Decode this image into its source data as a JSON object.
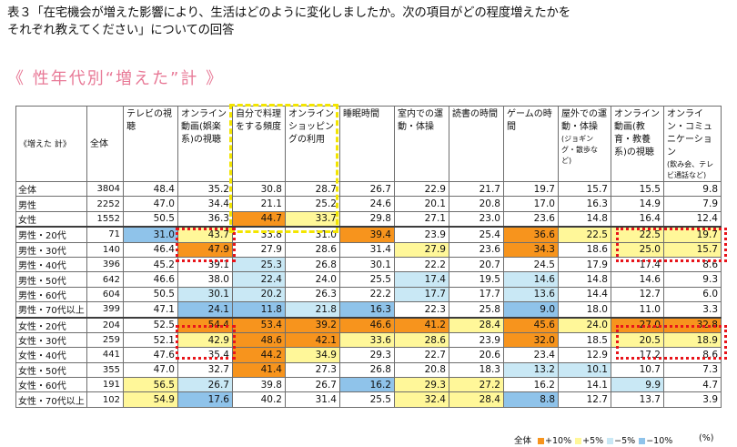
{
  "caption": "表３「在宅機会が増えた影響により、生活はどのように変化しましたか。次の項目がどの程度増えたかを\nそれぞれ教えてください」についての回答",
  "subtitle": "《 性年代別“増えた”計 》",
  "table": {
    "corner": "《増えた 計》",
    "total_header": "全体",
    "columns": [
      {
        "main": "テレビの視聴",
        "sub": ""
      },
      {
        "main": "オンライン動画(娯楽系)の視聴",
        "sub": ""
      },
      {
        "main": "自分で料理をする頻度",
        "sub": ""
      },
      {
        "main": "オンラインショッピングの利用",
        "sub": ""
      },
      {
        "main": "睡眠時間",
        "sub": ""
      },
      {
        "main": "室内での運動・体操",
        "sub": ""
      },
      {
        "main": "読書の時間",
        "sub": ""
      },
      {
        "main": "ゲームの時間",
        "sub": ""
      },
      {
        "main": "屋外での運動・体操",
        "sub": "(ジョギング・散歩など)"
      },
      {
        "main": "オンライン動画(教育・教養系)の視聴",
        "sub": ""
      },
      {
        "main": "オンライン・コミュニケーション",
        "sub": "(飲み会、テレビ通話など)"
      }
    ],
    "rows": [
      {
        "label": "全体",
        "n": "3804",
        "values": [
          "48.4",
          "35.2",
          "30.8",
          "28.7",
          "26.7",
          "22.9",
          "21.7",
          "19.7",
          "15.7",
          "15.5",
          "9.8"
        ],
        "colors": [
          "",
          "",
          "",
          "",
          "",
          "",
          "",
          "",
          "",
          "",
          ""
        ]
      },
      {
        "label": "男性",
        "n": "2252",
        "values": [
          "47.0",
          "34.4",
          "21.1",
          "25.2",
          "24.6",
          "20.1",
          "20.8",
          "17.0",
          "16.3",
          "14.9",
          "7.9"
        ],
        "colors": [
          "",
          "",
          "",
          "",
          "",
          "",
          "",
          "",
          "",
          "",
          ""
        ]
      },
      {
        "label": "女性",
        "n": "1552",
        "values": [
          "50.5",
          "36.3",
          "44.7",
          "33.7",
          "29.8",
          "27.1",
          "23.0",
          "23.6",
          "14.8",
          "16.4",
          "12.4"
        ],
        "colors": [
          "",
          "",
          "p10",
          "p5",
          "",
          "",
          "",
          "",
          "",
          "",
          ""
        ]
      },
      {
        "label": "男性・20代",
        "n": "71",
        "values": [
          "31.0",
          "43.7",
          "33.8",
          "31.0",
          "39.4",
          "23.9",
          "25.4",
          "36.6",
          "22.5",
          "22.5",
          "19.7"
        ],
        "colors": [
          "m10",
          "p5",
          "",
          "",
          "p10",
          "",
          "",
          "p10",
          "p5",
          "p5",
          "p5"
        ]
      },
      {
        "label": "男性・30代",
        "n": "140",
        "values": [
          "46.4",
          "47.9",
          "27.9",
          "28.6",
          "31.4",
          "27.9",
          "23.6",
          "34.3",
          "18.6",
          "25.0",
          "15.7"
        ],
        "colors": [
          "",
          "p10",
          "",
          "",
          "",
          "p5",
          "",
          "p10",
          "",
          "p5",
          "p5"
        ]
      },
      {
        "label": "男性・40代",
        "n": "396",
        "values": [
          "45.2",
          "39.1",
          "25.3",
          "26.8",
          "30.1",
          "22.2",
          "20.7",
          "24.5",
          "17.9",
          "17.4",
          "8.6"
        ],
        "colors": [
          "",
          "",
          "m5",
          "",
          "",
          "",
          "",
          "",
          "",
          "",
          ""
        ]
      },
      {
        "label": "男性・50代",
        "n": "642",
        "values": [
          "46.6",
          "38.0",
          "22.4",
          "24.0",
          "25.5",
          "17.4",
          "19.5",
          "14.6",
          "14.8",
          "14.6",
          "9.3"
        ],
        "colors": [
          "",
          "",
          "m5",
          "",
          "",
          "m5",
          "",
          "m5",
          "",
          "",
          ""
        ]
      },
      {
        "label": "男性・60代",
        "n": "604",
        "values": [
          "50.5",
          "30.1",
          "20.2",
          "26.3",
          "22.2",
          "17.7",
          "17.7",
          "13.6",
          "14.4",
          "12.7",
          "6.0"
        ],
        "colors": [
          "",
          "m5",
          "m5",
          "",
          "",
          "m5",
          "",
          "m5",
          "",
          "",
          ""
        ]
      },
      {
        "label": "男性・70代以上",
        "n": "399",
        "values": [
          "47.1",
          "24.1",
          "11.8",
          "21.8",
          "16.3",
          "22.3",
          "25.8",
          "9.0",
          "18.0",
          "11.0",
          "3.3"
        ],
        "colors": [
          "",
          "m10",
          "m10",
          "m5",
          "m10",
          "",
          "",
          "m10",
          "",
          "",
          ""
        ]
      },
      {
        "label": "女性・20代",
        "n": "204",
        "values": [
          "52.5",
          "54.4",
          "53.4",
          "39.2",
          "46.6",
          "41.2",
          "28.4",
          "45.6",
          "24.0",
          "27.0",
          "32.8"
        ],
        "colors": [
          "",
          "p10",
          "p10",
          "p10",
          "p10",
          "p10",
          "p5",
          "p10",
          "p5",
          "p10",
          "p10"
        ]
      },
      {
        "label": "女性・30代",
        "n": "259",
        "values": [
          "52.1",
          "42.9",
          "48.6",
          "42.1",
          "33.6",
          "28.6",
          "23.9",
          "32.0",
          "18.5",
          "20.5",
          "18.9"
        ],
        "colors": [
          "",
          "p5",
          "p10",
          "p10",
          "p5",
          "p5",
          "",
          "p10",
          "",
          "p5",
          "p5"
        ]
      },
      {
        "label": "女性・40代",
        "n": "441",
        "values": [
          "47.6",
          "35.4",
          "44.2",
          "34.9",
          "29.3",
          "22.7",
          "20.6",
          "23.4",
          "12.9",
          "17.2",
          "8.6"
        ],
        "colors": [
          "",
          "",
          "p10",
          "p5",
          "",
          "",
          "",
          "",
          "",
          "",
          ""
        ]
      },
      {
        "label": "女性・50代",
        "n": "355",
        "values": [
          "47.0",
          "32.7",
          "41.4",
          "27.3",
          "26.8",
          "20.8",
          "18.3",
          "13.2",
          "10.1",
          "10.7",
          "7.3"
        ],
        "colors": [
          "",
          "",
          "p10",
          "",
          "",
          "",
          "",
          "m5",
          "m5",
          "",
          ""
        ]
      },
      {
        "label": "女性・60代",
        "n": "191",
        "values": [
          "56.5",
          "26.7",
          "39.8",
          "26.7",
          "16.2",
          "29.3",
          "27.2",
          "16.2",
          "14.1",
          "9.9",
          "4.7"
        ],
        "colors": [
          "p5",
          "m5",
          "",
          "",
          "m10",
          "p5",
          "p5",
          "",
          "",
          "m5",
          ""
        ]
      },
      {
        "label": "女性・70代以上",
        "n": "102",
        "values": [
          "54.9",
          "17.6",
          "40.2",
          "31.4",
          "25.5",
          "32.4",
          "28.4",
          "8.8",
          "12.7",
          "13.7",
          "3.9"
        ],
        "colors": [
          "p5",
          "m10",
          "",
          "",
          "",
          "p5",
          "p5",
          "m10",
          "",
          "",
          ""
        ]
      }
    ]
  },
  "legend": {
    "base": "全体",
    "items": [
      {
        "label": "+10%",
        "color": "#f7941d"
      },
      {
        "label": "+5%",
        "color": "#fff799"
      },
      {
        "label": "−5%",
        "color": "#c9e8f5"
      },
      {
        "label": "−10%",
        "color": "#8fc3ea"
      }
    ]
  },
  "unit": "(%)"
}
